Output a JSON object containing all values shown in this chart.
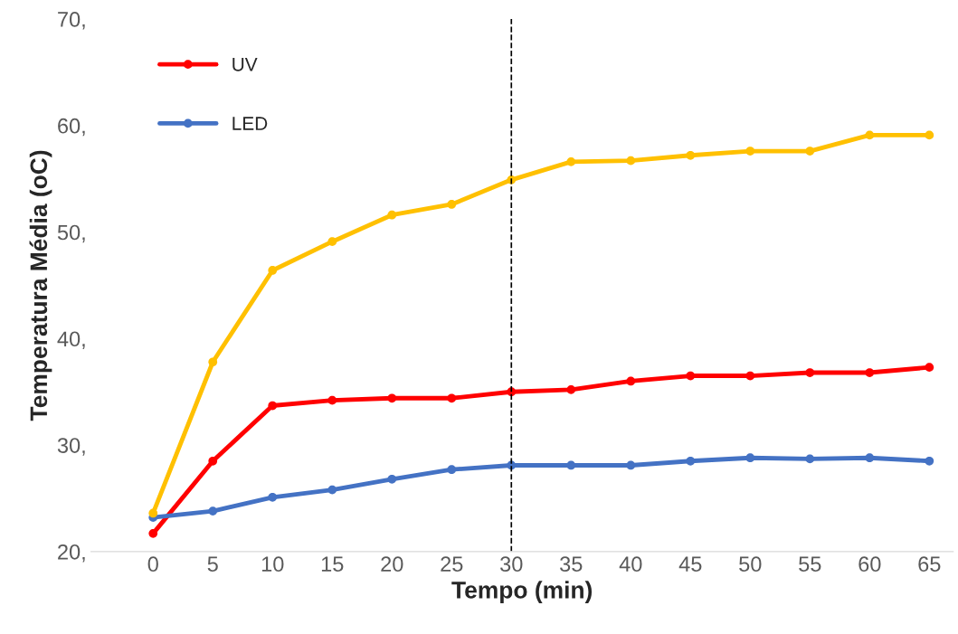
{
  "chart_data": {
    "type": "line",
    "xlabel": "Tempo (min)",
    "ylabel": "Temperatura Média (oC)",
    "x": [
      0,
      5,
      10,
      15,
      20,
      25,
      30,
      35,
      40,
      45,
      50,
      55,
      60,
      65
    ],
    "xlim": [
      -5.2,
      67
    ],
    "xticks": [
      0,
      5,
      10,
      15,
      20,
      25,
      30,
      35,
      40,
      45,
      50,
      55,
      60,
      65
    ],
    "ylim": [
      20,
      70
    ],
    "yticks": [
      {
        "value": 20,
        "label": "20,"
      },
      {
        "value": 30,
        "label": "30,"
      },
      {
        "value": 40,
        "label": "40,"
      },
      {
        "value": 50,
        "label": "50,"
      },
      {
        "value": 60,
        "label": "60,"
      },
      {
        "value": 70,
        "label": "70,"
      }
    ],
    "series": [
      {
        "name": "UV",
        "color": "#ff0000",
        "values": [
          21.7,
          28.5,
          33.7,
          34.2,
          34.4,
          34.4,
          35.0,
          35.2,
          36.0,
          36.5,
          36.5,
          36.8,
          36.8,
          37.3
        ]
      },
      {
        "name": "LED",
        "color": "#4472c4",
        "values": [
          23.2,
          23.8,
          25.1,
          25.8,
          26.8,
          27.7,
          28.1,
          28.1,
          28.1,
          28.5,
          28.8,
          28.7,
          28.8,
          28.5
        ]
      },
      {
        "color": "#ffc000",
        "values": [
          23.6,
          37.8,
          46.4,
          49.1,
          51.6,
          52.6,
          54.9,
          56.6,
          56.7,
          57.2,
          57.6,
          57.6,
          59.1,
          59.1
        ]
      }
    ],
    "ref_lines": [
      {
        "axis": "x",
        "value": 30,
        "color": "#000000",
        "line_style": "dashed"
      }
    ],
    "marker": "circle",
    "line_style": "solid",
    "grid": false,
    "legend": "top left"
  }
}
